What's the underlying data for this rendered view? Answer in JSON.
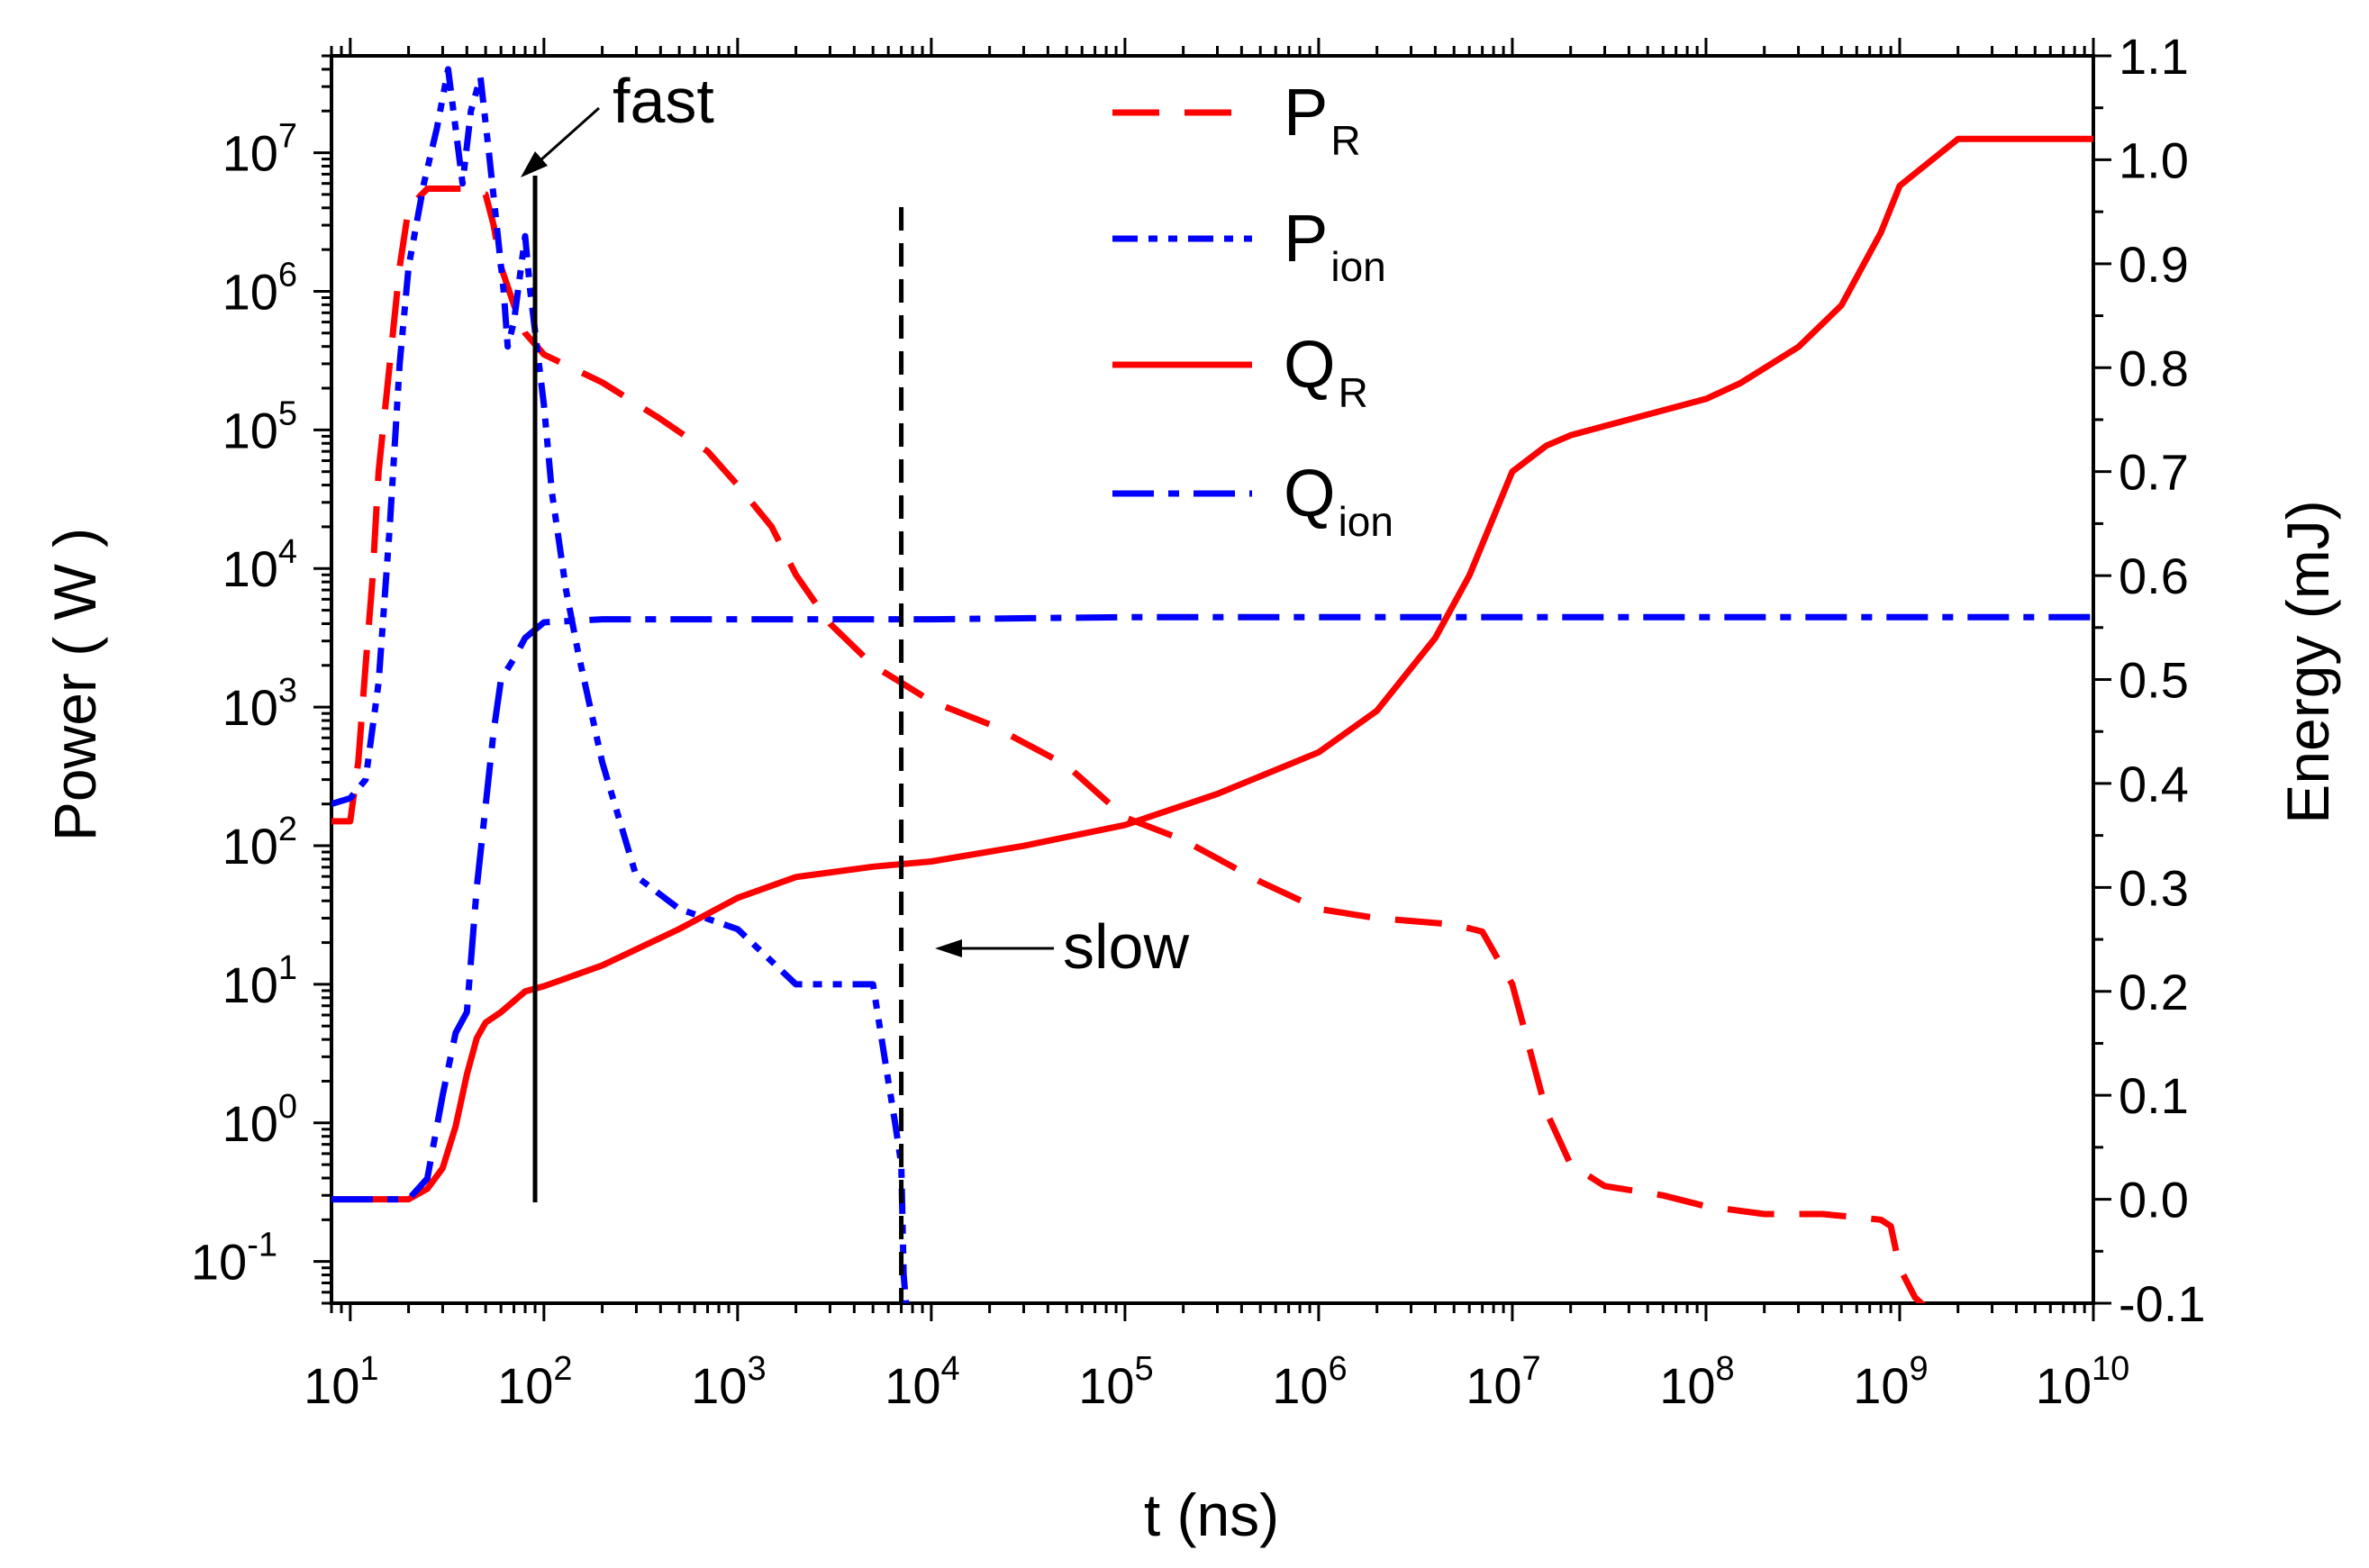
{
  "chart_data": {
    "type": "line",
    "title": "",
    "xlabel": "t (ns)",
    "ylabel_left": "Power ( W )",
    "ylabel_right": "Energy  (mJ)",
    "x_scale": "log",
    "xlim": [
      8,
      10000000000
    ],
    "ylim_left": [
      0.05,
      50000000
    ],
    "ylim_right": [
      -0.1,
      1.1
    ],
    "x_ticks": [
      {
        "base": "10",
        "exp": "1",
        "value": 10
      },
      {
        "base": "10",
        "exp": "2",
        "value": 100
      },
      {
        "base": "10",
        "exp": "3",
        "value": 1000
      },
      {
        "base": "10",
        "exp": "4",
        "value": 10000
      },
      {
        "base": "10",
        "exp": "5",
        "value": 100000
      },
      {
        "base": "10",
        "exp": "6",
        "value": 1000000
      },
      {
        "base": "10",
        "exp": "7",
        "value": 10000000
      },
      {
        "base": "10",
        "exp": "8",
        "value": 100000000
      },
      {
        "base": "10",
        "exp": "9",
        "value": 1000000000
      },
      {
        "base": "10",
        "exp": "10",
        "value": 10000000000
      }
    ],
    "y_left_ticks": [
      {
        "base": "10",
        "exp": "-1",
        "value": 0.1
      },
      {
        "base": "10",
        "exp": "0",
        "value": 1
      },
      {
        "base": "10",
        "exp": "1",
        "value": 10
      },
      {
        "base": "10",
        "exp": "2",
        "value": 100
      },
      {
        "base": "10",
        "exp": "3",
        "value": 1000
      },
      {
        "base": "10",
        "exp": "4",
        "value": 10000
      },
      {
        "base": "10",
        "exp": "5",
        "value": 100000
      },
      {
        "base": "10",
        "exp": "6",
        "value": 1000000
      },
      {
        "base": "10",
        "exp": "7",
        "value": 10000000
      }
    ],
    "y_right_ticks": [
      "-0.1",
      "0.0",
      "0.1",
      "0.2",
      "0.3",
      "0.4",
      "0.5",
      "0.6",
      "0.7",
      "0.8",
      "0.9",
      "1.0",
      "1.1"
    ],
    "legend_position": "top-center",
    "series": [
      {
        "name": "P_R",
        "label_main": "P",
        "label_sub": "R",
        "axis": "left",
        "color": "#ff0000",
        "style": "dash",
        "points": [
          [
            8,
            150
          ],
          [
            10,
            150
          ],
          [
            11,
            400
          ],
          [
            12,
            2000
          ],
          [
            13,
            8000
          ],
          [
            14,
            50000
          ],
          [
            16,
            300000
          ],
          [
            18,
            1500000
          ],
          [
            20,
            4000000
          ],
          [
            25,
            5500000
          ],
          [
            30,
            5500000
          ],
          [
            40,
            5500000
          ],
          [
            50,
            5000000
          ],
          [
            55,
            3000000
          ],
          [
            60,
            1500000
          ],
          [
            70,
            800000
          ],
          [
            80,
            500000
          ],
          [
            100,
            350000
          ],
          [
            200,
            220000
          ],
          [
            400,
            120000
          ],
          [
            700,
            70000
          ],
          [
            1000,
            40000
          ],
          [
            1500,
            20000
          ],
          [
            2000,
            9000
          ],
          [
            3000,
            4000
          ],
          [
            5000,
            2000
          ],
          [
            7000,
            1500
          ],
          [
            10000,
            1100
          ],
          [
            20000,
            750
          ],
          [
            50000,
            380
          ],
          [
            100000,
            160
          ],
          [
            200000,
            110
          ],
          [
            500000,
            55
          ],
          [
            1000000,
            35
          ],
          [
            2000000,
            30
          ],
          [
            5000000,
            27
          ],
          [
            7000000,
            24
          ],
          [
            10000000,
            10
          ],
          [
            15000000,
            1.2
          ],
          [
            20000000,
            0.5
          ],
          [
            30000000,
            0.35
          ],
          [
            60000000,
            0.3
          ],
          [
            100000000,
            0.25
          ],
          [
            200000000,
            0.22
          ],
          [
            400000000,
            0.22
          ],
          [
            800000000,
            0.2
          ],
          [
            900000000,
            0.18
          ],
          [
            1000000000,
            0.09
          ],
          [
            1200000000,
            0.055
          ],
          [
            1400000000,
            0.045
          ]
        ]
      },
      {
        "name": "P_ion",
        "label_main": "P",
        "label_sub": "ion",
        "axis": "left",
        "color": "#0000ff",
        "style": "dashdotdot",
        "points": [
          [
            8,
            200
          ],
          [
            10,
            220
          ],
          [
            12,
            300
          ],
          [
            14,
            1500
          ],
          [
            16,
            20000
          ],
          [
            18,
            300000
          ],
          [
            20,
            1500000
          ],
          [
            24,
            6000000
          ],
          [
            28,
            15000000
          ],
          [
            32,
            40000000
          ],
          [
            35,
            15000000
          ],
          [
            38,
            6000000
          ],
          [
            42,
            20000000
          ],
          [
            47,
            35000000
          ],
          [
            52,
            10000000
          ],
          [
            57,
            3000000
          ],
          [
            62,
            1000000
          ],
          [
            65,
            400000
          ],
          [
            70,
            600000
          ],
          [
            80,
            2500000
          ],
          [
            85,
            1000000
          ],
          [
            100,
            150000
          ],
          [
            110,
            35000
          ],
          [
            130,
            7000
          ],
          [
            150,
            2500
          ],
          [
            200,
            400
          ],
          [
            300,
            60
          ],
          [
            500,
            35
          ],
          [
            1000,
            25
          ],
          [
            2000,
            10
          ],
          [
            3500,
            10
          ],
          [
            5000,
            10
          ],
          [
            6000,
            2
          ],
          [
            6500,
            1
          ],
          [
            7000,
            0.5
          ],
          [
            7200,
            0.08
          ],
          [
            7400,
            0.05
          ]
        ]
      },
      {
        "name": "Q_R",
        "label_main": "Q",
        "label_sub": "R",
        "axis": "right",
        "color": "#ff0000",
        "style": "solid",
        "points": [
          [
            8,
            0.0
          ],
          [
            20,
            0.0
          ],
          [
            25,
            0.01
          ],
          [
            30,
            0.03
          ],
          [
            35,
            0.07
          ],
          [
            40,
            0.12
          ],
          [
            45,
            0.155
          ],
          [
            50,
            0.17
          ],
          [
            60,
            0.18
          ],
          [
            80,
            0.2
          ],
          [
            100,
            0.205
          ],
          [
            200,
            0.225
          ],
          [
            500,
            0.26
          ],
          [
            1000,
            0.29
          ],
          [
            2000,
            0.31
          ],
          [
            5000,
            0.32
          ],
          [
            10000,
            0.325
          ],
          [
            30000,
            0.34
          ],
          [
            100000,
            0.36
          ],
          [
            300000,
            0.39
          ],
          [
            1000000,
            0.43
          ],
          [
            2000000,
            0.47
          ],
          [
            4000000,
            0.54
          ],
          [
            6000000,
            0.6
          ],
          [
            10000000,
            0.7
          ],
          [
            15000000,
            0.725
          ],
          [
            20000000,
            0.735
          ],
          [
            50000000,
            0.755
          ],
          [
            100000000,
            0.77
          ],
          [
            150000000,
            0.785
          ],
          [
            300000000,
            0.82
          ],
          [
            500000000,
            0.86
          ],
          [
            800000000,
            0.93
          ],
          [
            1000000000,
            0.975
          ],
          [
            2000000000,
            1.02
          ],
          [
            10000000000,
            1.02
          ]
        ]
      },
      {
        "name": "Q_ion",
        "label_main": "Q",
        "label_sub": "ion",
        "axis": "right",
        "color": "#0000ff",
        "style": "dashdot",
        "points": [
          [
            8,
            0.0
          ],
          [
            20,
            0.0
          ],
          [
            25,
            0.02
          ],
          [
            30,
            0.1
          ],
          [
            35,
            0.16
          ],
          [
            40,
            0.18
          ],
          [
            45,
            0.3
          ],
          [
            55,
            0.45
          ],
          [
            60,
            0.5
          ],
          [
            70,
            0.52
          ],
          [
            80,
            0.54
          ],
          [
            100,
            0.555
          ],
          [
            200,
            0.558
          ],
          [
            1000,
            0.558
          ],
          [
            10000,
            0.558
          ],
          [
            100000,
            0.56
          ],
          [
            10000000000,
            0.56
          ]
        ]
      }
    ],
    "markers": [
      {
        "name": "fast",
        "label": "fast",
        "x": 90,
        "style": "solid"
      },
      {
        "name": "slow",
        "label": "slow",
        "x": 7000,
        "style": "dashed"
      }
    ]
  }
}
